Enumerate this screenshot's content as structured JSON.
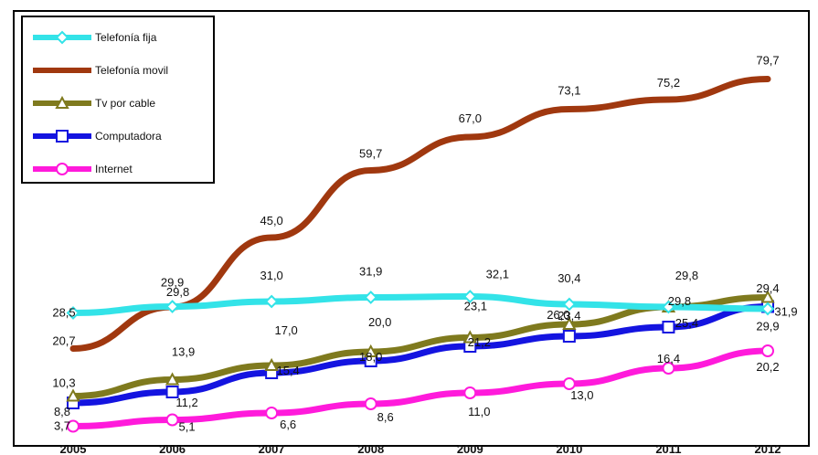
{
  "chart_data": {
    "type": "line",
    "x": [
      "2005",
      "2006",
      "2007",
      "2008",
      "2009",
      "2010",
      "2011",
      "2012"
    ],
    "ylim": [
      0,
      90
    ],
    "grid": false,
    "legend_position": "top-left",
    "series": [
      {
        "name": "Telefonía fija",
        "color": "#33e3e8",
        "marker": "diamond",
        "values": [
          28.5,
          29.9,
          31.0,
          31.9,
          32.1,
          30.4,
          29.8,
          29.4
        ],
        "labels": [
          "28,5",
          "29,9",
          "31,0",
          "31,9",
          "32,1",
          "30,4",
          "29,8",
          "29,4"
        ]
      },
      {
        "name": "Telefonía movil",
        "color": "#a0380f",
        "marker": "none",
        "values": [
          20.7,
          29.8,
          45.0,
          59.7,
          67.0,
          73.1,
          75.2,
          79.7
        ],
        "labels": [
          "20,7",
          "29,8",
          "45,0",
          "59,7",
          "67,0",
          "73,1",
          "75,2",
          "79,7"
        ]
      },
      {
        "name": "Tv por cable",
        "color": "#7f7a1e",
        "marker": "triangle",
        "values": [
          10.3,
          13.9,
          17.0,
          20.0,
          23.1,
          26.0,
          29.8,
          31.9
        ],
        "labels": [
          "10,3",
          "13,9",
          "17,0",
          "20,0",
          "23,1",
          "26,0",
          "29,8",
          "31,9"
        ]
      },
      {
        "name": "Computadora",
        "color": "#1414e0",
        "marker": "square",
        "values": [
          8.8,
          11.2,
          15.4,
          18.0,
          21.2,
          23.4,
          25.4,
          29.9
        ],
        "labels": [
          "8,8",
          "11,2",
          "15,4",
          "18,0",
          "21,2",
          "23,4",
          "25,4",
          "29,9"
        ]
      },
      {
        "name": "Internet",
        "color": "#ff1adb",
        "marker": "circle",
        "values": [
          3.7,
          5.1,
          6.6,
          8.6,
          11.0,
          13.0,
          16.4,
          20.2
        ],
        "labels": [
          "3,7",
          "5,1",
          "6,6",
          "8,6",
          "11,0",
          "13,0",
          "16,4",
          "20,2"
        ]
      }
    ]
  }
}
